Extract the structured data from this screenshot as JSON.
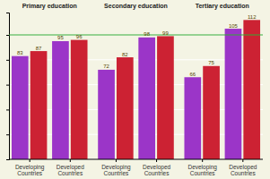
{
  "chart_data": {
    "type": "bar",
    "annotations": [
      "Primary education",
      "Secondary education",
      "Tertiary education"
    ],
    "categories": [
      "Developing\nCountries",
      "Developed\nCountries",
      "Developing\nCountries",
      "Developed\nCountries",
      "Developing\nCountries",
      "Developed\nCountries"
    ],
    "series": [
      {
        "color": "#9b35c8",
        "values": [
          83,
          95,
          72,
          98,
          66,
          105
        ]
      },
      {
        "color": "#cc2233",
        "values": [
          87,
          96,
          82,
          99,
          75,
          112
        ]
      }
    ],
    "hline": {
      "y": 100,
      "color": "#33aa33"
    },
    "background_color": "#f4f4e4",
    "ylim": [
      0,
      118
    ],
    "yticks": [
      0,
      20,
      40,
      60,
      80,
      100
    ],
    "grid": true,
    "data_labels": true,
    "tick_labels": "x"
  }
}
